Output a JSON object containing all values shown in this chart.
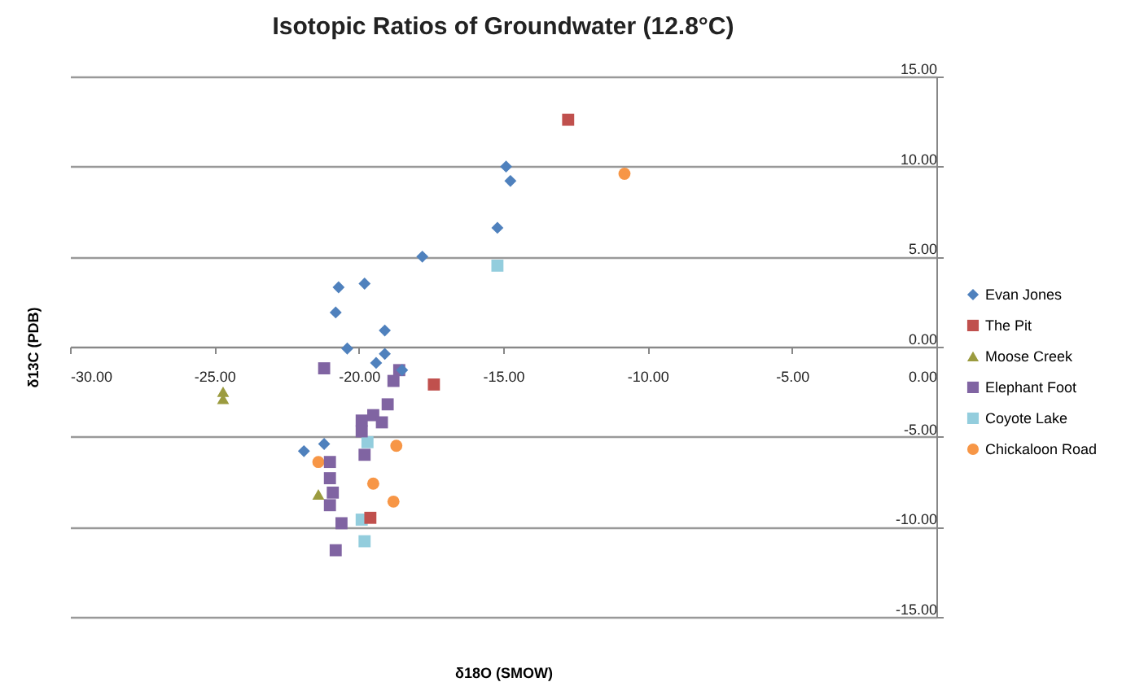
{
  "chart_data": {
    "type": "scatter",
    "title": "Isotopic Ratios of Groundwater (12.8°C)",
    "xlabel": "δ18O (SMOW)",
    "ylabel": "δ13C (PDB)",
    "xlim": [
      -30,
      0
    ],
    "ylim": [
      -15,
      15
    ],
    "xticks": [
      {
        "value": -30,
        "label": "-30.00"
      },
      {
        "value": -25,
        "label": "-25.00"
      },
      {
        "value": -20,
        "label": "-20.00"
      },
      {
        "value": -15,
        "label": "-15.00"
      },
      {
        "value": -10,
        "label": "-10.00"
      },
      {
        "value": -5,
        "label": "-5.00"
      },
      {
        "value": 0,
        "label": "0.00"
      }
    ],
    "yticks": [
      {
        "value": -15,
        "label": "-15.00"
      },
      {
        "value": -10,
        "label": "-10.00"
      },
      {
        "value": -5,
        "label": "-5.00"
      },
      {
        "value": 0,
        "label": "0.00"
      },
      {
        "value": 5,
        "label": "5.00"
      },
      {
        "value": 10,
        "label": "10.00"
      },
      {
        "value": 15,
        "label": "15.00"
      }
    ],
    "grid": "y",
    "legend": "right",
    "series": [
      {
        "name": "Evan Jones",
        "color": "#4f81bd",
        "marker": "diamond",
        "x": [
          -14.9,
          -14.75,
          -15.2,
          -17.8,
          -20.7,
          -19.8,
          -20.8,
          -19.1,
          -20.4,
          -19.1,
          -19.4,
          -18.5,
          -21.9,
          -21.2
        ],
        "values": [
          10.0,
          9.2,
          6.6,
          5.0,
          3.3,
          3.5,
          1.9,
          0.9,
          -0.1,
          -0.4,
          -0.9,
          -1.3,
          -5.8,
          -5.4
        ]
      },
      {
        "name": "The Pit",
        "color": "#c0504d",
        "marker": "square",
        "x": [
          -12.75,
          -17.4,
          -19.6
        ],
        "values": [
          12.6,
          -2.1,
          -9.5
        ]
      },
      {
        "name": "Moose Creek",
        "color": "#9b9b3f",
        "marker": "triangle",
        "x": [
          -24.7,
          -24.7,
          -21.4
        ],
        "values": [
          -2.5,
          -2.9,
          -8.2
        ]
      },
      {
        "name": "Elephant Foot",
        "color": "#8064a2",
        "marker": "square",
        "x": [
          -21.2,
          -18.6,
          -18.8,
          -19.0,
          -19.5,
          -19.2,
          -19.9,
          -19.9,
          -19.8,
          -21.0,
          -21.0,
          -20.9,
          -21.0,
          -20.6,
          -20.8
        ],
        "values": [
          -1.2,
          -1.3,
          -1.9,
          -3.2,
          -3.8,
          -4.2,
          -4.1,
          -4.7,
          -6.0,
          -6.4,
          -7.3,
          -8.1,
          -8.8,
          -9.8,
          -11.3
        ]
      },
      {
        "name": "Coyote Lake",
        "color": "#93cddd",
        "marker": "square",
        "x": [
          -15.2,
          -19.7,
          -19.9,
          -19.8
        ],
        "values": [
          4.5,
          -5.3,
          -9.6,
          -10.8
        ]
      },
      {
        "name": "Chickaloon Road",
        "color": "#f79646",
        "marker": "circle",
        "x": [
          -10.8,
          -18.7,
          -21.4,
          -19.5,
          -18.8
        ],
        "values": [
          9.6,
          -5.5,
          -6.4,
          -7.6,
          -8.6
        ]
      }
    ]
  }
}
